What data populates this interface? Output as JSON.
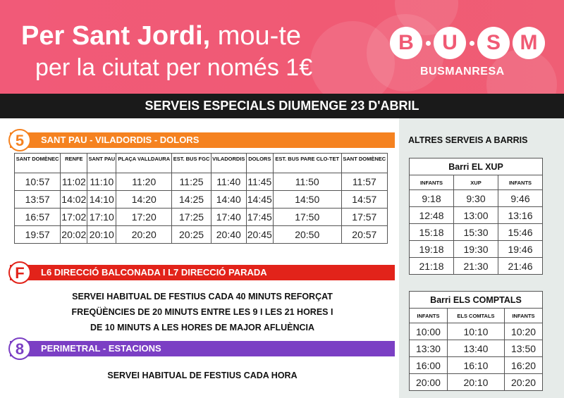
{
  "header": {
    "headline_bold": "Per Sant Jordi,",
    "headline_rest": " mou-te",
    "headline_line2": "per la ciutat per només 1€",
    "logo_letters": [
      "B",
      "U",
      "S",
      "M"
    ],
    "logo_sub": "BUSMANRESA"
  },
  "banner": "SERVEIS ESPECIALS DIUMENGE 23 D'ABRIL",
  "line5": {
    "badge": "5",
    "name": "SANT PAU - VILADORDIS - DOLORS",
    "headers": [
      "SANT DOMÈNEC",
      "RENFE",
      "SANT PAU",
      "PLAÇA VALLDAURA",
      "EST. BUS FGC",
      "VILADORDIS",
      "DOLORS",
      "EST. BUS PARE CLO-TET",
      "SANT DOMÈNEC"
    ],
    "rows": [
      [
        "10:57",
        "11:02",
        "11:10",
        "11:20",
        "11:25",
        "11:40",
        "11:45",
        "11:50",
        "11:57"
      ],
      [
        "13:57",
        "14:02",
        "14:10",
        "14:20",
        "14:25",
        "14:40",
        "14:45",
        "14:50",
        "14:57"
      ],
      [
        "16:57",
        "17:02",
        "17:10",
        "17:20",
        "17:25",
        "17:40",
        "17:45",
        "17:50",
        "17:57"
      ],
      [
        "19:57",
        "20:02",
        "20:10",
        "20:20",
        "20:25",
        "20:40",
        "20:45",
        "20:50",
        "20:57"
      ]
    ]
  },
  "lineF": {
    "badge": "F",
    "name": "L6 DIRECCIÓ BALCONADA I L7 DIRECCIÓ  PARADA",
    "note": [
      "SERVEI HABITUAL DE FESTIUS CADA 40 MINUTS REFORÇAT",
      "FREQÜÈNCIES DE 20 MINUTS ENTRE LES 9 I LES 21 HORES I",
      "DE 10 MINUTS A LES HORES DE MAJOR AFLUÈNCIA"
    ]
  },
  "line8": {
    "badge": "8",
    "name": "PERIMETRAL - ESTACIONS",
    "note": "SERVEI HABITUAL DE FESTIUS CADA HORA"
  },
  "other": {
    "title": "ALTRES SERVEIS A BARRIS",
    "xup": {
      "caption": "Barri EL XUP",
      "headers": [
        "INFANTS",
        "XUP",
        "INFANTS"
      ],
      "rows": [
        [
          "9:18",
          "9:30",
          "9:46"
        ],
        [
          "12:48",
          "13:00",
          "13:16"
        ],
        [
          "15:18",
          "15:30",
          "15:46"
        ],
        [
          "19:18",
          "19:30",
          "19:46"
        ],
        [
          "21:18",
          "21:30",
          "21:46"
        ]
      ]
    },
    "comtals": {
      "caption": "Barri ELS COMPTALS",
      "headers": [
        "INFANTS",
        "ELS COMTALS",
        "INFANTS"
      ],
      "rows": [
        [
          "10:00",
          "10:10",
          "10:20"
        ],
        [
          "13:30",
          "13:40",
          "13:50"
        ],
        [
          "16:00",
          "16:10",
          "16:20"
        ],
        [
          "20:00",
          "20:10",
          "20:20"
        ]
      ]
    }
  }
}
